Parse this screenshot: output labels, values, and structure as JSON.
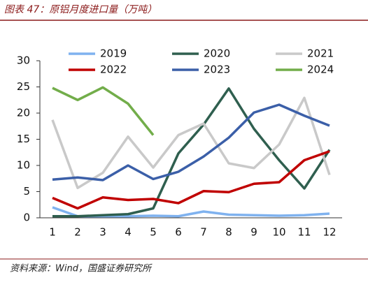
{
  "chart_data": {
    "type": "line",
    "title": "图表 47：原铝月度进口量（万吨）",
    "source": "资料来源：Wind，国盛证券研究所",
    "categories": [
      "1",
      "2",
      "3",
      "4",
      "5",
      "6",
      "7",
      "8",
      "9",
      "10",
      "11",
      "12"
    ],
    "ylim": [
      0,
      30
    ],
    "yticks": [
      0,
      5,
      10,
      15,
      20,
      25,
      30
    ],
    "series": [
      {
        "name": "2019",
        "color": "#7fb2ef",
        "values": [
          2.0,
          0.3,
          0.3,
          0.3,
          0.4,
          0.3,
          1.2,
          0.6,
          0.5,
          0.4,
          0.5,
          0.8
        ]
      },
      {
        "name": "2020",
        "color": "#2f5f4f",
        "values": [
          0.3,
          0.3,
          0.5,
          0.7,
          1.8,
          12.3,
          17.8,
          24.7,
          17.0,
          11.0,
          5.6,
          13.0
        ]
      },
      {
        "name": "2021",
        "color": "#c9c9c9",
        "values": [
          18.7,
          5.7,
          8.6,
          15.5,
          9.6,
          15.8,
          18.0,
          10.4,
          9.5,
          14.0,
          22.9,
          8.2
        ]
      },
      {
        "name": "2022",
        "color": "#c00000",
        "values": [
          3.8,
          1.8,
          3.9,
          3.4,
          3.6,
          2.8,
          5.1,
          4.9,
          6.5,
          6.8,
          11.0,
          12.7
        ]
      },
      {
        "name": "2023",
        "color": "#3b5fa8",
        "values": [
          7.3,
          7.7,
          7.2,
          10.0,
          7.4,
          8.8,
          11.7,
          15.3,
          20.1,
          21.6,
          19.5,
          17.6
        ]
      },
      {
        "name": "2024",
        "color": "#72ad4a",
        "values": [
          24.8,
          22.5,
          24.9,
          21.8,
          15.8,
          null,
          null,
          null,
          null,
          null,
          null,
          null
        ]
      }
    ]
  }
}
